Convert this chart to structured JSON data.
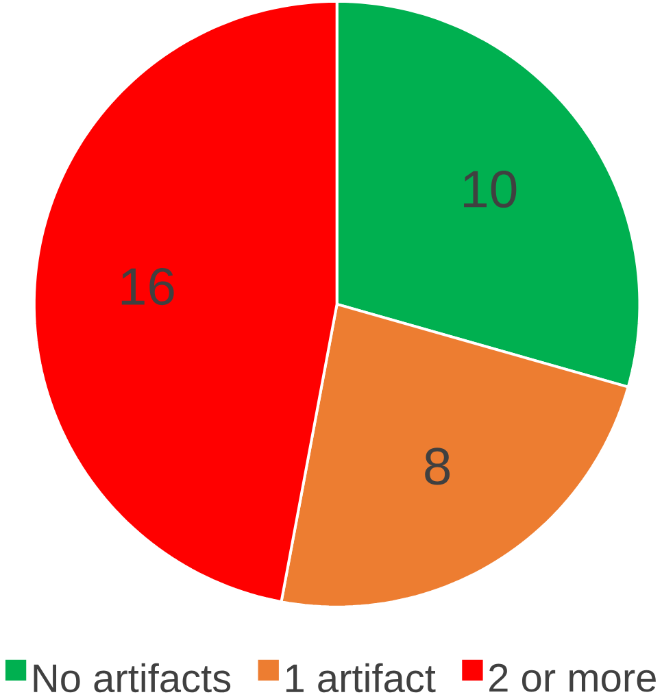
{
  "chart_data": {
    "type": "pie",
    "categories": [
      "No artifacts",
      "1 artifact",
      "2 or more"
    ],
    "values": [
      10,
      8,
      16
    ],
    "colors": [
      "#00b050",
      "#ed7d31",
      "#ff0000"
    ],
    "data_labels": true,
    "legend": "bottom"
  }
}
